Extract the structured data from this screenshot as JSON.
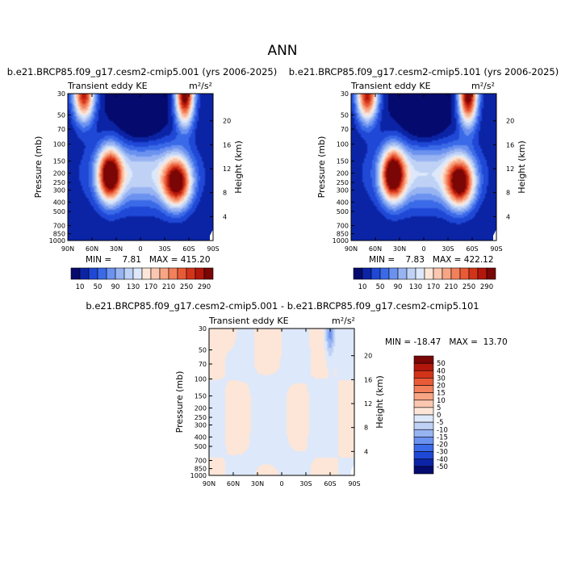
{
  "figure": {
    "title": "ANN",
    "panels": [
      {
        "title": "b.e21.BRCP85.f09_g17.cesm2-cmip5.001 (yrs 2006-2025)",
        "left_label": "Transient eddy KE",
        "units": "m²/s²",
        "min_max": "MIN =    7.81   MAX = 415.20"
      },
      {
        "title": "b.e21.BRCP85.f09_g17.cesm2-cmip5.101 (yrs 2006-2025)",
        "left_label": "Transient eddy KE",
        "units": "m²/s²",
        "min_max": "MIN =    7.83   MAX = 422.12"
      },
      {
        "title": "b.e21.BRCP85.f09_g17.cesm2-cmip5.001 - b.e21.BRCP85.f09_g17.cesm2-cmip5.101",
        "left_label": "Transient eddy KE",
        "units": "m²/s²",
        "min_max": "MIN = -18.47   MAX =  13.70"
      }
    ]
  },
  "chart_data": [
    {
      "type": "heatmap",
      "title": "b.e21.BRCP85.f09_g17.cesm2-cmip5.001 (yrs 2006-2025)",
      "xlabel": "",
      "ylabel": "Pressure (mb)",
      "y2label": "Height (km)",
      "x_ticks": [
        "90N",
        "60N",
        "30N",
        "0",
        "30S",
        "60S",
        "90S"
      ],
      "y_ticks": [
        "30",
        "50",
        "70",
        "100",
        "150",
        "200",
        "250",
        "300",
        "400",
        "500",
        "700",
        "850",
        "1000"
      ],
      "y2_ticks": [
        "20",
        "16",
        "12",
        "8",
        "4"
      ],
      "ylim": [
        1000,
        30
      ],
      "y_scale": "log",
      "min": 7.81,
      "max": 415.2,
      "color_levels": [
        10,
        50,
        90,
        130,
        170,
        210,
        250,
        290
      ],
      "features": [
        {
          "lat": 38,
          "p": 200,
          "value": 290
        },
        {
          "lat": -45,
          "p": 250,
          "value": 290
        },
        {
          "lat": 70,
          "p": 30,
          "value": 250
        },
        {
          "lat": -55,
          "p": 30,
          "value": 290
        }
      ]
    },
    {
      "type": "heatmap",
      "title": "b.e21.BRCP85.f09_g17.cesm2-cmip5.101 (yrs 2006-2025)",
      "xlabel": "",
      "ylabel": "Pressure (mb)",
      "y2label": "Height (km)",
      "x_ticks": [
        "90N",
        "60N",
        "30N",
        "0",
        "30S",
        "60S",
        "90S"
      ],
      "y_ticks": [
        "30",
        "50",
        "70",
        "100",
        "150",
        "200",
        "250",
        "300",
        "400",
        "500",
        "700",
        "850",
        "1000"
      ],
      "y2_ticks": [
        "20",
        "16",
        "12",
        "8",
        "4"
      ],
      "ylim": [
        1000,
        30
      ],
      "y_scale": "log",
      "min": 7.83,
      "max": 422.12,
      "color_levels": [
        10,
        50,
        90,
        130,
        170,
        210,
        250,
        290
      ],
      "features": [
        {
          "lat": 38,
          "p": 200,
          "value": 290
        },
        {
          "lat": -45,
          "p": 250,
          "value": 290
        },
        {
          "lat": 70,
          "p": 30,
          "value": 250
        },
        {
          "lat": -55,
          "p": 30,
          "value": 290
        }
      ]
    },
    {
      "type": "heatmap",
      "title": "b.e21.BRCP85.f09_g17.cesm2-cmip5.001 - b.e21.BRCP85.f09_g17.cesm2-cmip5.101",
      "xlabel": "",
      "ylabel": "Pressure (mb)",
      "y2label": "Height (km)",
      "x_ticks": [
        "90N",
        "60N",
        "30N",
        "0",
        "30S",
        "60S",
        "90S"
      ],
      "y_ticks": [
        "30",
        "50",
        "70",
        "100",
        "150",
        "200",
        "250",
        "300",
        "400",
        "500",
        "700",
        "850",
        "1000"
      ],
      "y2_ticks": [
        "20",
        "16",
        "12",
        "8",
        "4"
      ],
      "ylim": [
        1000,
        30
      ],
      "y_scale": "log",
      "min": -18.47,
      "max": 13.7,
      "color_levels": [
        -50,
        -40,
        -30,
        -20,
        -15,
        -10,
        -5,
        0,
        5,
        10,
        15,
        20,
        30,
        40,
        50
      ],
      "features": [
        {
          "lat": -60,
          "p": 40,
          "value": -15
        },
        {
          "lat": 65,
          "p": 30,
          "value": 5
        }
      ]
    }
  ],
  "colorbars": {
    "abs": {
      "labels": [
        "10",
        "50",
        "90",
        "130",
        "170",
        "210",
        "250",
        "290"
      ],
      "colors": [
        "#050a6e",
        "#0b24a6",
        "#1f48d6",
        "#3b6ae8",
        "#6c92f0",
        "#97b3f2",
        "#bfd2f6",
        "#dde8fa",
        "#fde6d8",
        "#fbc7b0",
        "#f7a584",
        "#f2805b",
        "#e95a37",
        "#d33419",
        "#b3170b",
        "#7a0606"
      ]
    },
    "diff": {
      "labels": [
        "-50",
        "-40",
        "-30",
        "-20",
        "-15",
        "-10",
        "-5",
        "0",
        "5",
        "10",
        "15",
        "20",
        "30",
        "40",
        "50"
      ],
      "colors": [
        "#050a6e",
        "#0b24a6",
        "#1f48d6",
        "#3b6ae8",
        "#6c92f0",
        "#97b3f2",
        "#bfd2f6",
        "#dde8fa",
        "#fde6d8",
        "#fbc7b0",
        "#f7a584",
        "#f2805b",
        "#e95a37",
        "#d33419",
        "#b3170b",
        "#7a0606"
      ]
    }
  }
}
